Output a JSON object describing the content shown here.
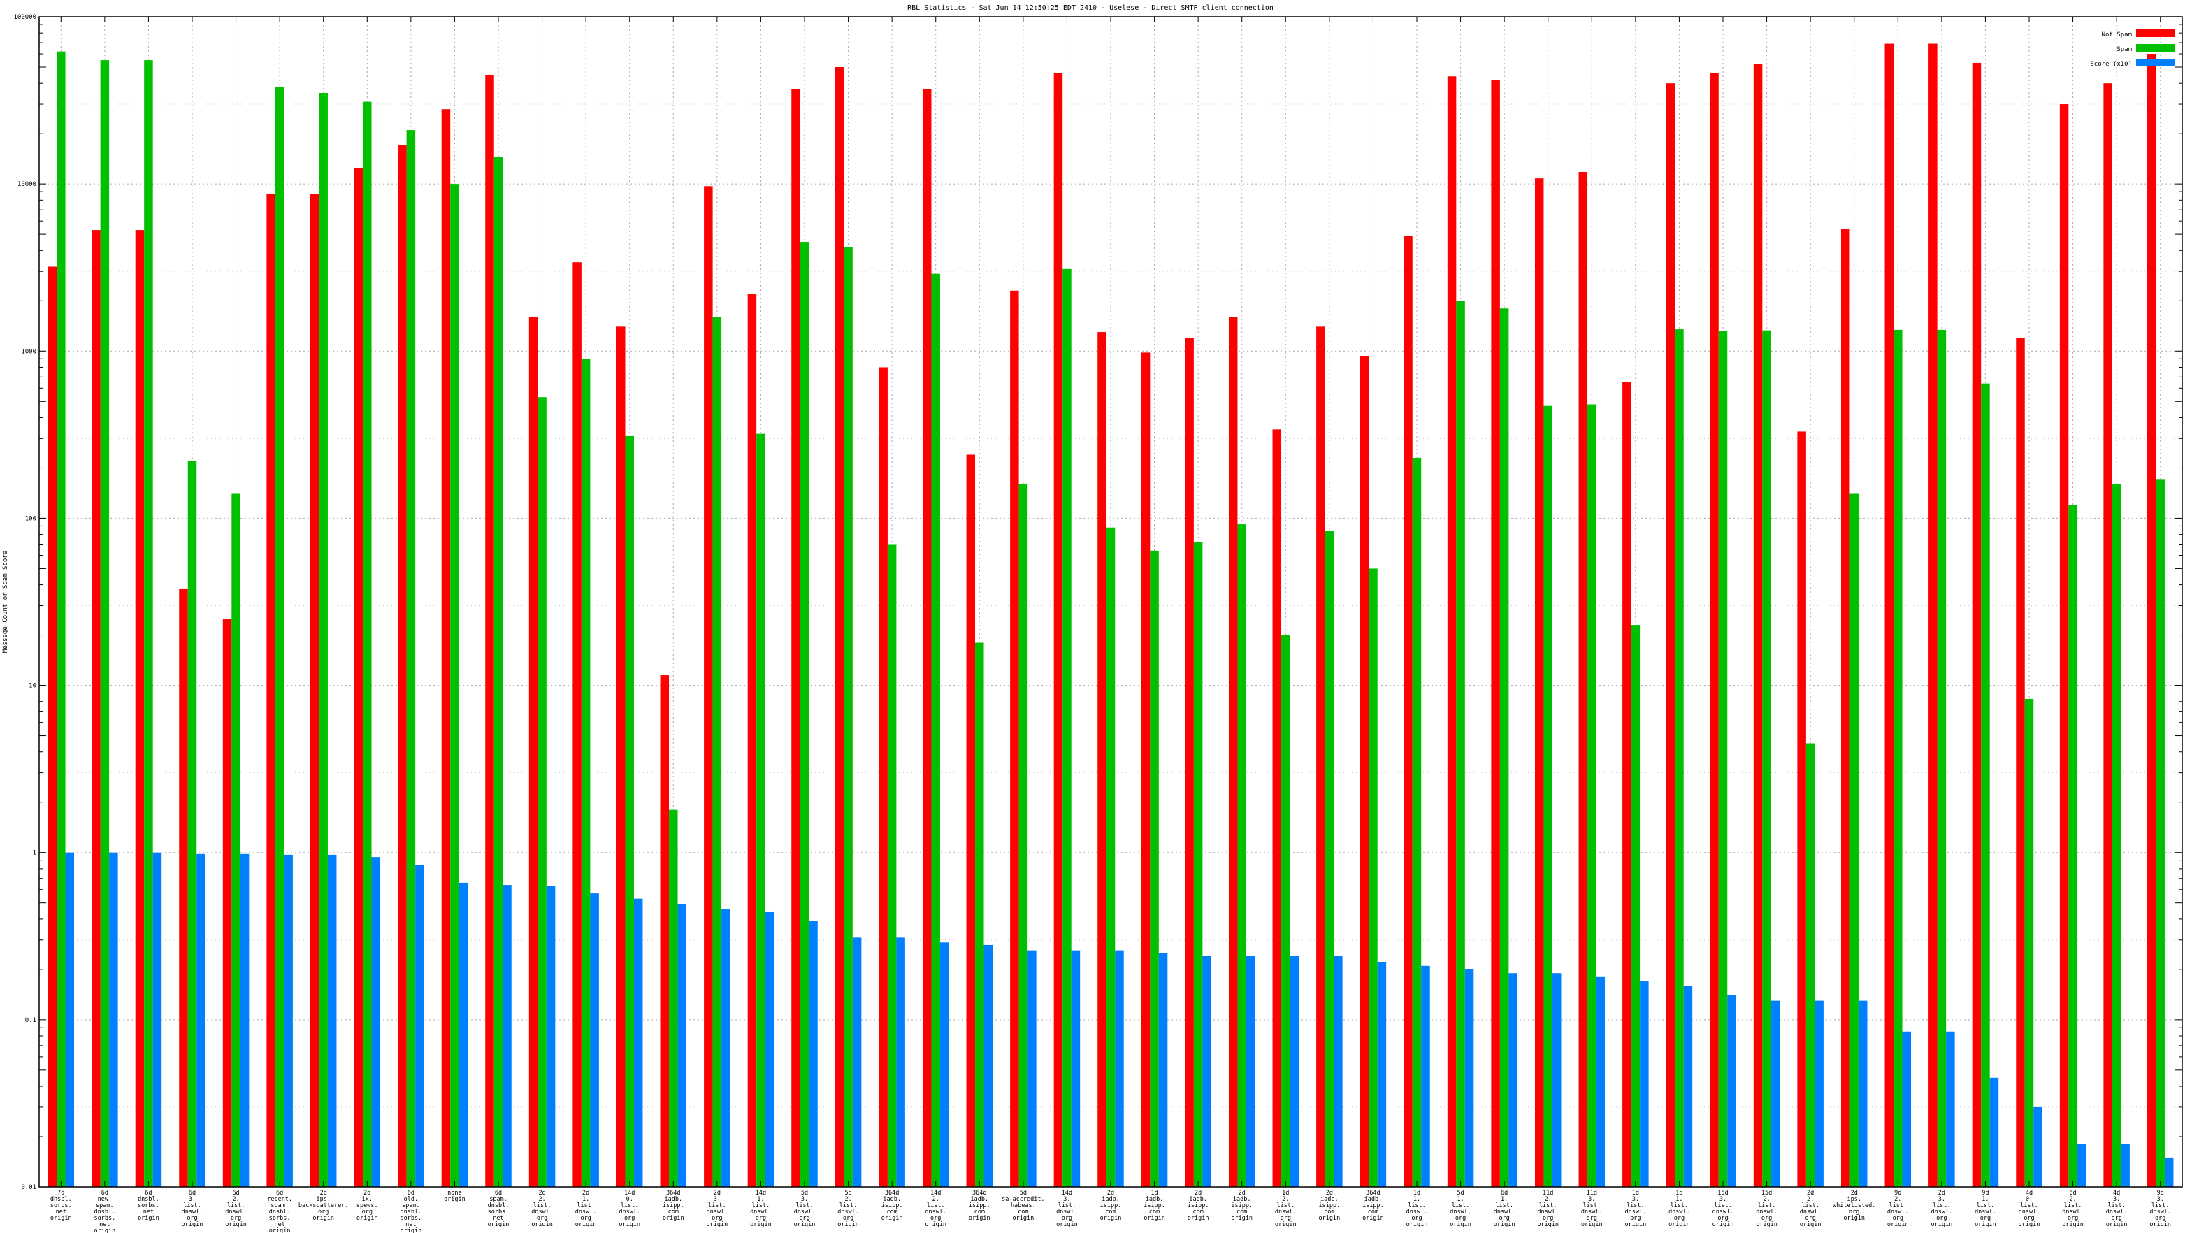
{
  "chart_data": {
    "type": "bar",
    "title": "RBL Statistics - Sat Jun 14 12:50:25 EDT 2410 - Uselese - Direct SMTP client connection",
    "ylabel": "Message Count or Spam Score",
    "xlabel": "",
    "yscale": "log",
    "ylim": [
      0.01,
      100000
    ],
    "yticks": [
      {
        "value": 0.01,
        "label": "0.01"
      },
      {
        "value": 0.1,
        "label": "0.1"
      },
      {
        "value": 1,
        "label": "1"
      },
      {
        "value": 10,
        "label": "10"
      },
      {
        "value": 100,
        "label": "100"
      },
      {
        "value": 1000,
        "label": "1000"
      },
      {
        "value": 10000,
        "label": "10000"
      },
      {
        "value": 100000,
        "label": "100000"
      }
    ],
    "grid": true,
    "legend_position": "top-right",
    "colors": [
      "#ff0000",
      "#00c000",
      "#0080ff"
    ],
    "categories": [
      [
        "7d",
        "dnsbl.",
        "sorbs.",
        "net",
        "origin"
      ],
      [
        "6d",
        "new.",
        "spam.",
        "dnsbl.",
        "sorbs.",
        "net",
        "origin"
      ],
      [
        "6d",
        "dnsbl.",
        "sorbs.",
        "net",
        "origin"
      ],
      [
        "6d",
        "3.",
        "list.",
        "dnswl.",
        "org",
        "origin"
      ],
      [
        "6d",
        "2.",
        "list.",
        "dnswl.",
        "org",
        "origin"
      ],
      [
        "6d",
        "recent.",
        "spam.",
        "dnsbl.",
        "sorbs.",
        "net",
        "origin"
      ],
      [
        "2d",
        "ips.",
        "backscatterer.",
        "org",
        "origin"
      ],
      [
        "2d",
        "ix.",
        "spews.",
        "org",
        "origin"
      ],
      [
        "6d",
        "old.",
        "spam.",
        "dnsbl.",
        "sorbs.",
        "net",
        "origin"
      ],
      [
        "none",
        "origin"
      ],
      [
        "6d",
        "spam.",
        "dnsbl.",
        "sorbs.",
        "net",
        "origin"
      ],
      [
        "2d",
        "2.",
        "list.",
        "dnswl.",
        "org",
        "origin"
      ],
      [
        "2d",
        "1.",
        "list.",
        "dnswl.",
        "org",
        "origin"
      ],
      [
        "14d",
        "0.",
        "list.",
        "dnswl.",
        "org",
        "origin"
      ],
      [
        "364d",
        "iadb.",
        "isipp.",
        "com",
        "origin"
      ],
      [
        "2d",
        "3.",
        "list.",
        "dnswl.",
        "org",
        "origin"
      ],
      [
        "14d",
        "1.",
        "list.",
        "dnswl.",
        "org",
        "origin"
      ],
      [
        "5d",
        "3.",
        "list.",
        "dnswl.",
        "org",
        "origin"
      ],
      [
        "5d",
        "2.",
        "list.",
        "dnswl.",
        "org",
        "origin"
      ],
      [
        "364d",
        "iadb.",
        "isipp.",
        "com",
        "origin"
      ],
      [
        "14d",
        "2.",
        "list.",
        "dnswl.",
        "org",
        "origin"
      ],
      [
        "364d",
        "iadb.",
        "isipp.",
        "com",
        "origin"
      ],
      [
        "5d",
        "sa-accredit.",
        "habeas.",
        "com",
        "origin"
      ],
      [
        "14d",
        "3.",
        "list.",
        "dnswl.",
        "org",
        "origin"
      ],
      [
        "2d",
        "iadb.",
        "isipp.",
        "com",
        "origin"
      ],
      [
        "1d",
        "iadb.",
        "isipp.",
        "com",
        "origin"
      ],
      [
        "2d",
        "iadb.",
        "isipp.",
        "com",
        "origin"
      ],
      [
        "2d",
        "iadb.",
        "isipp.",
        "com",
        "origin"
      ],
      [
        "1d",
        "2.",
        "list.",
        "dnswl.",
        "org",
        "origin"
      ],
      [
        "2d",
        "iadb.",
        "isipp.",
        "com",
        "origin"
      ],
      [
        "364d",
        "iadb.",
        "isipp.",
        "com",
        "origin"
      ],
      [
        "1d",
        "1.",
        "list.",
        "dnswl.",
        "org",
        "origin"
      ],
      [
        "5d",
        "1.",
        "list.",
        "dnswl.",
        "org",
        "origin"
      ],
      [
        "6d",
        "1.",
        "list.",
        "dnswl.",
        "org",
        "origin"
      ],
      [
        "11d",
        "2.",
        "list.",
        "dnswl.",
        "org",
        "origin"
      ],
      [
        "11d",
        "3.",
        "list.",
        "dnswl.",
        "org",
        "origin"
      ],
      [
        "1d",
        "3.",
        "list.",
        "dnswl.",
        "org",
        "origin"
      ],
      [
        "1d",
        "1.",
        "list.",
        "dnswl.",
        "org",
        "origin"
      ],
      [
        "15d",
        "3.",
        "list.",
        "dnswl.",
        "org",
        "origin"
      ],
      [
        "15d",
        "2.",
        "list.",
        "dnswl.",
        "org",
        "origin"
      ],
      [
        "2d",
        "2.",
        "list.",
        "dnswl.",
        "org",
        "origin"
      ],
      [
        "2d",
        "ips.",
        "whitelisted.",
        "org",
        "origin"
      ],
      [
        "9d",
        "2.",
        "list.",
        "dnswl.",
        "org",
        "origin"
      ],
      [
        "2d",
        "3.",
        "list.",
        "dnswl.",
        "org",
        "origin"
      ],
      [
        "9d",
        "1.",
        "list.",
        "dnswl.",
        "org",
        "origin"
      ],
      [
        "4d",
        "0.",
        "list.",
        "dnswl.",
        "org",
        "origin"
      ],
      [
        "6d",
        "2.",
        "list.",
        "dnswl.",
        "org",
        "origin"
      ],
      [
        "4d",
        "3.",
        "list.",
        "dnswl.",
        "org",
        "origin"
      ],
      [
        "9d",
        "3.",
        "list.",
        "dnswl.",
        "org",
        "origin"
      ]
    ],
    "series": [
      {
        "name": "Not Spam",
        "values": [
          3200,
          5300,
          5300,
          38,
          25,
          8700,
          8700,
          12500,
          17000,
          28000,
          45000,
          1600,
          3400,
          1400,
          11.5,
          9700,
          2200,
          37000,
          50000,
          800,
          37000,
          240,
          2300,
          46000,
          1300,
          980,
          1200,
          1600,
          340,
          1400,
          930,
          4900,
          44000,
          42000,
          10800,
          11800,
          650,
          40000,
          46000,
          52000,
          330,
          5400,
          69000,
          69000,
          53000,
          1200,
          30000,
          40000,
          60000
        ]
      },
      {
        "name": "Spam",
        "values": [
          62000,
          55000,
          55000,
          220,
          140,
          38000,
          35000,
          31000,
          21000,
          10000,
          14500,
          530,
          900,
          310,
          1.8,
          1600,
          320,
          4500,
          4200,
          70,
          2900,
          18,
          160,
          3100,
          88,
          64,
          72,
          92,
          20,
          84,
          50,
          230,
          2000,
          1800,
          470,
          480,
          23,
          1350,
          1320,
          1330,
          4.5,
          140,
          1340,
          1340,
          640,
          8.3,
          120,
          160,
          170
        ]
      },
      {
        "name": "Score (x10)",
        "values": [
          1,
          1,
          1,
          0.98,
          0.98,
          0.97,
          0.97,
          0.94,
          0.84,
          0.66,
          0.64,
          0.63,
          0.57,
          0.53,
          0.49,
          0.46,
          0.44,
          0.39,
          0.31,
          0.31,
          0.29,
          0.28,
          0.26,
          0.26,
          0.26,
          0.25,
          0.24,
          0.24,
          0.24,
          0.24,
          0.22,
          0.21,
          0.2,
          0.19,
          0.19,
          0.18,
          0.17,
          0.16,
          0.14,
          0.13,
          0.13,
          0.13,
          0.085,
          0.085,
          0.045,
          0.03,
          0.018,
          0.018,
          0.015
        ]
      }
    ]
  }
}
